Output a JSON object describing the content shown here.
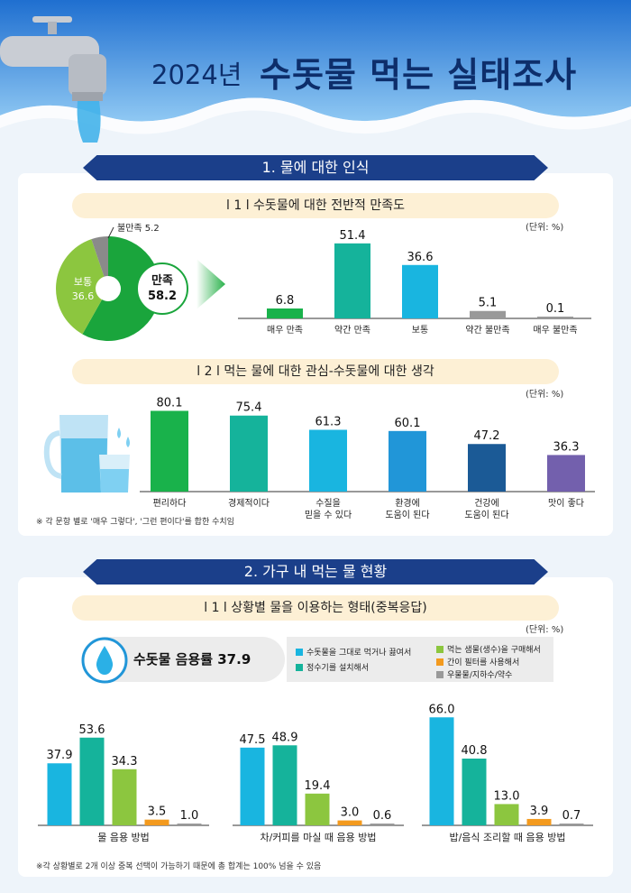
{
  "title": {
    "year": "2024년",
    "main": "수돗물 먹는 실태조사"
  },
  "colors": {
    "navy": "#1b3f8a",
    "green": "#19b24b",
    "teal": "#15b39b",
    "cyan": "#19b5e0",
    "blue": "#2196d8",
    "darkblue": "#1b5a96",
    "purple": "#7360ad",
    "lime": "#8cc63f",
    "orange": "#f39a1e",
    "gray": "#999999"
  },
  "section1": {
    "title": "1. 물에 대한 인식",
    "sub1": {
      "title": "l 1 l 수돗물에 대한 전반적 만족도",
      "unit": "(단위: %)"
    },
    "sub2": {
      "title": "l 2 l 먹는 물에 대한 관심-수돗물에 대한 생각",
      "unit": "(단위: %)",
      "note": "※ 각 문항 별로 '매우 그렇다', '그런 편이다'를 합한 수치임"
    }
  },
  "section2": {
    "title": "2. 가구 내 먹는 물 현황",
    "sub1": {
      "title": "l 1 l 상황별 물을 이용하는 형태(중복응답)",
      "unit": "(단위: %)"
    },
    "rate": "수돗물 음용률 37.9",
    "legend": [
      "수돗물을 그대로 먹거나 끓여서",
      "정수기를 설치해서",
      "먹는 샘물(생수)을 구매해서",
      "간이 필터를 사용해서",
      "우물물/지하수/약수"
    ],
    "note": "※각 상황별로 2개 이상 중복 선택이 가능하기 때문에 총 합계는 100% 넘을 수 있음"
  },
  "chart_data": [
    {
      "type": "pie",
      "labels": [
        "만족",
        "보통",
        "불만족"
      ],
      "values": [
        58.2,
        36.6,
        5.2
      ],
      "label_text": {
        "satisfied": "만족",
        "satisfied_value": "58.2",
        "normal": "보통",
        "normal_value": "36.6",
        "unsatisfied": "불만족 5.2"
      },
      "colors": [
        "#1aa53c",
        "#8cc63f",
        "#8a8a8a"
      ]
    },
    {
      "type": "bar",
      "categories": [
        "매우 만족",
        "약간 만족",
        "보통",
        "약간 불만족",
        "매우 불만족"
      ],
      "values": [
        6.8,
        51.4,
        36.6,
        5.1,
        0.1
      ],
      "value_labels": [
        "6.8",
        "51.4",
        "36.6",
        "5.1",
        "0.1"
      ],
      "colors": [
        "#19b24b",
        "#15b39b",
        "#19b5e0",
        "#999999",
        "#999999"
      ],
      "ylim": [
        0,
        55
      ]
    },
    {
      "type": "bar",
      "categories": [
        "편리하다",
        "경제적이다",
        "수질을\n믿을 수 있다",
        "환경에\n도움이 된다",
        "건강에\n도움이 된다",
        "맛이 좋다"
      ],
      "values": [
        80.1,
        75.4,
        61.3,
        60.1,
        47.2,
        36.3
      ],
      "value_labels": [
        "80.1",
        "75.4",
        "61.3",
        "60.1",
        "47.2",
        "36.3"
      ],
      "colors": [
        "#19b24b",
        "#15b39b",
        "#19b5e0",
        "#2196d8",
        "#1b5a96",
        "#7360ad"
      ],
      "ylim": [
        0,
        85
      ]
    },
    {
      "type": "bar",
      "xlabel": "물 음용 방법",
      "categories": [
        "수돗물을 그대로 먹거나 끓여서",
        "정수기를 설치해서",
        "먹는 샘물(생수)을 구매해서",
        "간이 필터를 사용해서",
        "우물물/지하수/약수"
      ],
      "values": [
        37.9,
        53.6,
        34.3,
        3.5,
        1.0
      ],
      "value_labels": [
        "37.9",
        "53.6",
        "34.3",
        "3.5",
        "1.0"
      ],
      "ylim": [
        0,
        70
      ]
    },
    {
      "type": "bar",
      "xlabel": "차/커피를 마실 때 음용 방법",
      "categories": [
        "수돗물을 그대로 먹거나 끓여서",
        "정수기를 설치해서",
        "먹는 샘물(생수)을 구매해서",
        "간이 필터를 사용해서",
        "우물물/지하수/약수"
      ],
      "values": [
        47.5,
        48.9,
        19.4,
        3.0,
        0.6
      ],
      "value_labels": [
        "47.5",
        "48.9",
        "19.4",
        "3.0",
        "0.6"
      ],
      "ylim": [
        0,
        70
      ]
    },
    {
      "type": "bar",
      "xlabel": "밥/음식 조리할 때 음용 방법",
      "categories": [
        "수돗물을 그대로 먹거나 끓여서",
        "정수기를 설치해서",
        "먹는 샘물(생수)을 구매해서",
        "간이 필터를 사용해서",
        "우물물/지하수/약수"
      ],
      "values": [
        66.0,
        40.8,
        13.0,
        3.9,
        0.7
      ],
      "value_labels": [
        "66.0",
        "40.8",
        "13.0",
        "3.9",
        "0.7"
      ],
      "ylim": [
        0,
        70
      ]
    }
  ]
}
